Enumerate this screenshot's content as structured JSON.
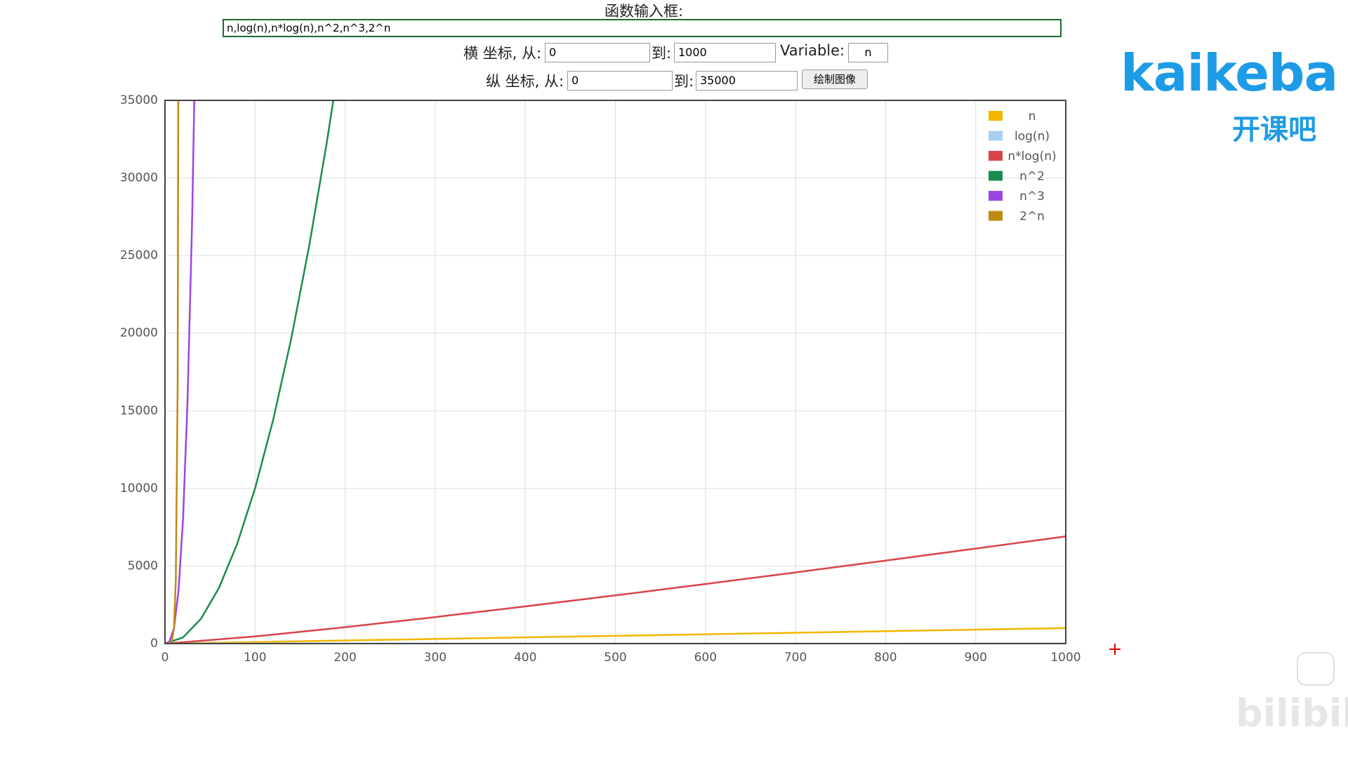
{
  "form": {
    "title": "函数输入框:",
    "expression": "n,log(n),n*log(n),n^2,n^3,2^n",
    "x_from_label": "横 坐标, 从:",
    "x_from": "0",
    "x_to_label": "到:",
    "x_to": "1000",
    "variable_label": "Variable:",
    "variable": "n",
    "y_from_label": "纵 坐标, 从:",
    "y_from": "0",
    "y_to_label": "到:",
    "y_to": "35000",
    "button": "绘制图像"
  },
  "logo": {
    "name": "kaikeba",
    "subtitle": "开课吧"
  },
  "watermark": "bilibili",
  "chart_data": {
    "type": "line",
    "series": [
      {
        "name": "n",
        "color": "#f2b600",
        "x": [
          0,
          1000
        ],
        "values": [
          0,
          1000
        ]
      },
      {
        "name": "log(n)",
        "color": "#a8cff0",
        "x": [
          1,
          10,
          100,
          1000
        ],
        "values": [
          0,
          2.3,
          4.6,
          6.9
        ]
      },
      {
        "name": "n*log(n)",
        "color": "#d9434a",
        "x": [
          1,
          100,
          200,
          300,
          400,
          500,
          600,
          700,
          800,
          900,
          1000
        ],
        "values": [
          0,
          460.5,
          1059.7,
          1711.1,
          2396.6,
          3107.3,
          3838.2,
          4585.9,
          5347.6,
          6122.2,
          6907.8
        ]
      },
      {
        "name": "n^2",
        "color": "#1a8c4e",
        "x": [
          0,
          20,
          40,
          60,
          80,
          100,
          120,
          140,
          160,
          180,
          200
        ],
        "values": [
          0,
          400,
          1600,
          3600,
          6400,
          10000,
          14400,
          19600,
          25600,
          32400,
          40000
        ]
      },
      {
        "name": "n^3",
        "color": "#9b45e4",
        "x": [
          0,
          5,
          10,
          15,
          20,
          25,
          30,
          35
        ],
        "values": [
          0,
          125,
          1000,
          3375,
          8000,
          15625,
          27000,
          42875
        ]
      },
      {
        "name": "2^n",
        "color": "#c08a10",
        "x": [
          0,
          2,
          4,
          6,
          8,
          10,
          12,
          14,
          16
        ],
        "values": [
          1,
          4,
          16,
          64,
          256,
          1024,
          4096,
          16384,
          65536
        ]
      }
    ],
    "xlim": [
      0,
      1000
    ],
    "ylim": [
      0,
      35000
    ],
    "xticks": [
      0,
      100,
      200,
      300,
      400,
      500,
      600,
      700,
      800,
      900,
      1000
    ],
    "yticks": [
      0,
      5000,
      10000,
      15000,
      20000,
      25000,
      30000,
      35000
    ],
    "grid": true,
    "legend": "upper right"
  }
}
